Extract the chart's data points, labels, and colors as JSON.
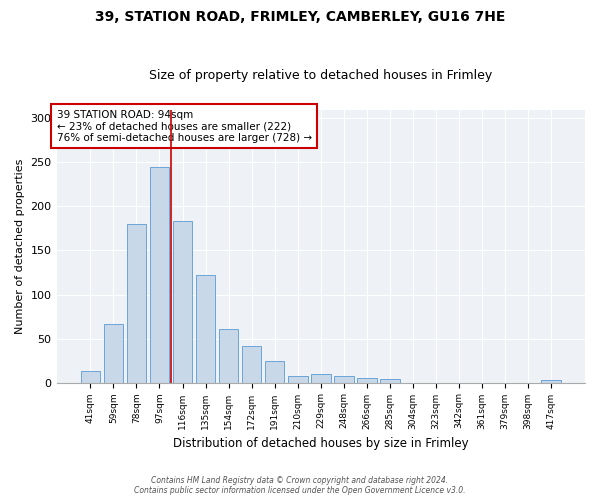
{
  "title1": "39, STATION ROAD, FRIMLEY, CAMBERLEY, GU16 7HE",
  "title2": "Size of property relative to detached houses in Frimley",
  "xlabel": "Distribution of detached houses by size in Frimley",
  "ylabel": "Number of detached properties",
  "categories": [
    "41sqm",
    "59sqm",
    "78sqm",
    "97sqm",
    "116sqm",
    "135sqm",
    "154sqm",
    "172sqm",
    "191sqm",
    "210sqm",
    "229sqm",
    "248sqm",
    "266sqm",
    "285sqm",
    "304sqm",
    "323sqm",
    "342sqm",
    "361sqm",
    "379sqm",
    "398sqm",
    "417sqm"
  ],
  "values": [
    13,
    67,
    180,
    245,
    183,
    122,
    61,
    41,
    25,
    7,
    10,
    7,
    5,
    4,
    0,
    0,
    0,
    0,
    0,
    0,
    3
  ],
  "bar_color": "#c8d8e8",
  "bar_edge_color": "#5b9bd5",
  "vline_x": 3.5,
  "vline_color": "#cc0000",
  "annotation_title": "39 STATION ROAD: 94sqm",
  "annotation_line2": "← 23% of detached houses are smaller (222)",
  "annotation_line3": "76% of semi-detached houses are larger (728) →",
  "annotation_box_color": "#cc0000",
  "ylim": [
    0,
    310
  ],
  "yticks": [
    0,
    50,
    100,
    150,
    200,
    250,
    300
  ],
  "footer1": "Contains HM Land Registry data © Crown copyright and database right 2024.",
  "footer2": "Contains public sector information licensed under the Open Government Licence v3.0."
}
